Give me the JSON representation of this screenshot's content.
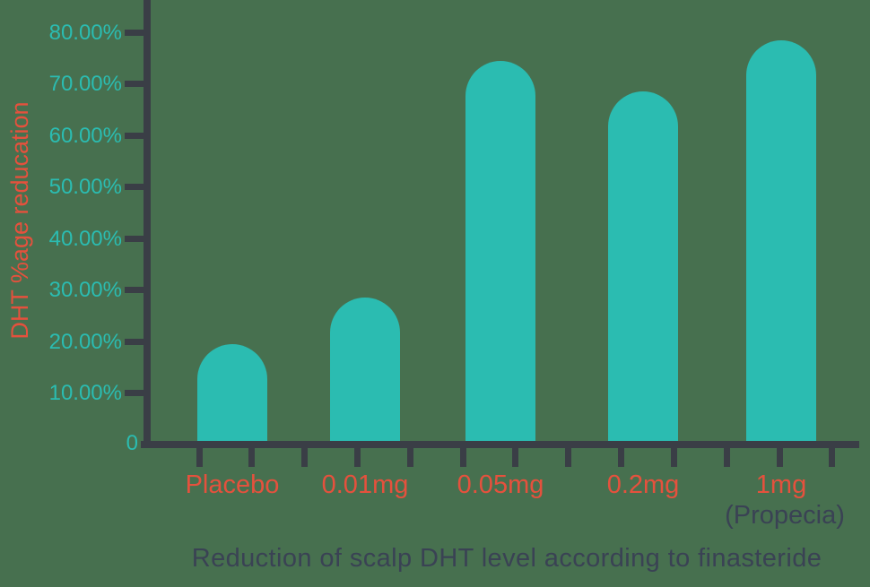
{
  "background_color": "#47704F",
  "chart_data": {
    "type": "bar",
    "title": "Reduction of scalp DHT level according to finasteride",
    "ylabel": "DHT %age reducation",
    "xlabel": "",
    "origin_label": "0",
    "categories": [
      {
        "label": "Placebo"
      },
      {
        "label": "0.01mg"
      },
      {
        "label": "0.05mg"
      },
      {
        "label": "0.2mg"
      },
      {
        "label": "1mg",
        "sublabel": "(Propecia)"
      }
    ],
    "values": [
      19.5,
      28.5,
      74.5,
      68.5,
      78.5
    ],
    "y_ticks": [
      {
        "value": 10,
        "label": "10.00%"
      },
      {
        "value": 20,
        "label": "20.00%"
      },
      {
        "value": 30,
        "label": "30.00%"
      },
      {
        "value": 40,
        "label": "40.00%"
      },
      {
        "value": 50,
        "label": "50.00%"
      },
      {
        "value": 60,
        "label": "60.00%"
      },
      {
        "value": 70,
        "label": "70.00%"
      },
      {
        "value": 80,
        "label": "80.00%"
      }
    ],
    "ylim": [
      0,
      86
    ],
    "grid": false,
    "legend": false,
    "colors": {
      "bar": "#2BBCB1",
      "axis": "#3A3E46",
      "y_tick_label": "#2BBCB1",
      "category_label": "#E5513D",
      "ylabel": "#E5513D",
      "title": "#3A4254",
      "sublabel": "#3A4254",
      "background": "#47704F"
    }
  }
}
